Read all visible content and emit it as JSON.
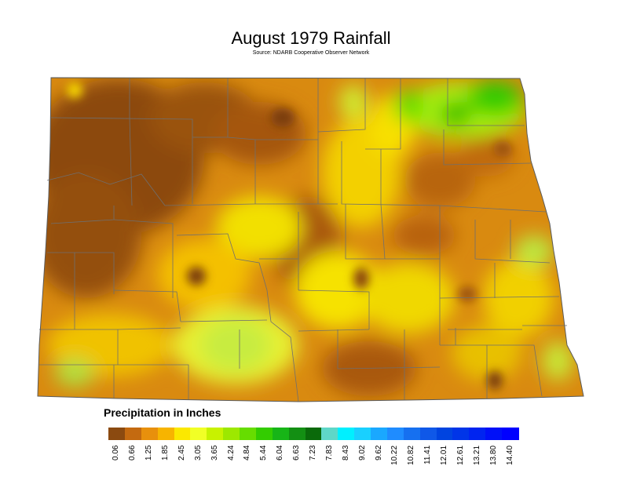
{
  "title": "August 1979 Rainfall",
  "subtitle": "Source: NDARB Cooperative Observer Network",
  "legend": {
    "title": "Precipitation in Inches",
    "ticks": [
      "0.06",
      "0.66",
      "1.25",
      "1.85",
      "2.45",
      "3.05",
      "3.65",
      "4.24",
      "4.84",
      "5.44",
      "6.04",
      "6.63",
      "7.23",
      "7.83",
      "8.43",
      "9.02",
      "9.62",
      "10.22",
      "10.82",
      "11.41",
      "12.01",
      "12.61",
      "13.21",
      "13.80",
      "14.40"
    ],
    "colors": [
      "#8b4a10",
      "#c46a10",
      "#e8900c",
      "#f7b400",
      "#fbe800",
      "#f1ff26",
      "#c8f200",
      "#9de800",
      "#66dd00",
      "#33cc00",
      "#17b517",
      "#138f13",
      "#0a6a0a",
      "#5fd7c8",
      "#00f0ff",
      "#19d0ff",
      "#1aa8ff",
      "#1f8cff",
      "#1670f0",
      "#0f58e8",
      "#0044e0",
      "#0035e8",
      "#0024f0",
      "#0010f8",
      "#0000ff"
    ]
  }
}
